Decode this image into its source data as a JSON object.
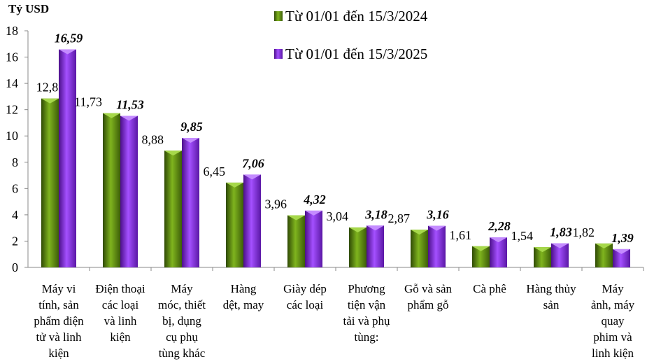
{
  "chart_data": {
    "type": "bar",
    "ylabel": "Tỷ USD",
    "ylim": [
      0,
      18
    ],
    "yticks": [
      0,
      2,
      4,
      6,
      8,
      10,
      12,
      14,
      16,
      18
    ],
    "grid": false,
    "legend_position": "top-right",
    "categories": [
      [
        "Máy vi",
        "tính, sản",
        "phẩm điện",
        "tử và linh",
        "kiện"
      ],
      [
        "Điện thoại",
        "các loại",
        "và linh",
        "kiện"
      ],
      [
        "Máy",
        "móc, thiết",
        "bị, dụng",
        "cụ phụ",
        "tùng khác"
      ],
      [
        "Hàng",
        "dệt, may"
      ],
      [
        "Giày dép",
        "các loại"
      ],
      [
        "Phương",
        "tiện vận",
        "tải và phụ",
        "tùng:"
      ],
      [
        "Gỗ và sản",
        "phẩm gỗ"
      ],
      [
        "Cà phê"
      ],
      [
        "Hàng thủy",
        "sản"
      ],
      [
        "Máy",
        "ảnh, máy",
        "quay",
        "phim và",
        "linh kiện"
      ]
    ],
    "series": [
      {
        "name": "Từ 01/01 đến 15/3/2024",
        "color": "#5e8a12",
        "values": [
          12.85,
          11.73,
          8.88,
          6.45,
          3.96,
          3.04,
          2.87,
          1.61,
          1.54,
          1.82
        ],
        "labels": [
          "12,85",
          "11,73",
          "8,88",
          "6,45",
          "3,96",
          "3,04",
          "2,87",
          "1,61",
          "1,54",
          "1,82"
        ]
      },
      {
        "name": "Từ 01/01 đến 15/3/2025",
        "color": "#8a2be2",
        "values": [
          16.59,
          11.53,
          9.85,
          7.06,
          4.32,
          3.18,
          3.16,
          2.28,
          1.83,
          1.39
        ],
        "labels": [
          "16,59",
          "11,53",
          "9,85",
          "7,06",
          "4,32",
          "3,18",
          "3,16",
          "2,28",
          "1,83",
          "1,39"
        ]
      }
    ]
  }
}
